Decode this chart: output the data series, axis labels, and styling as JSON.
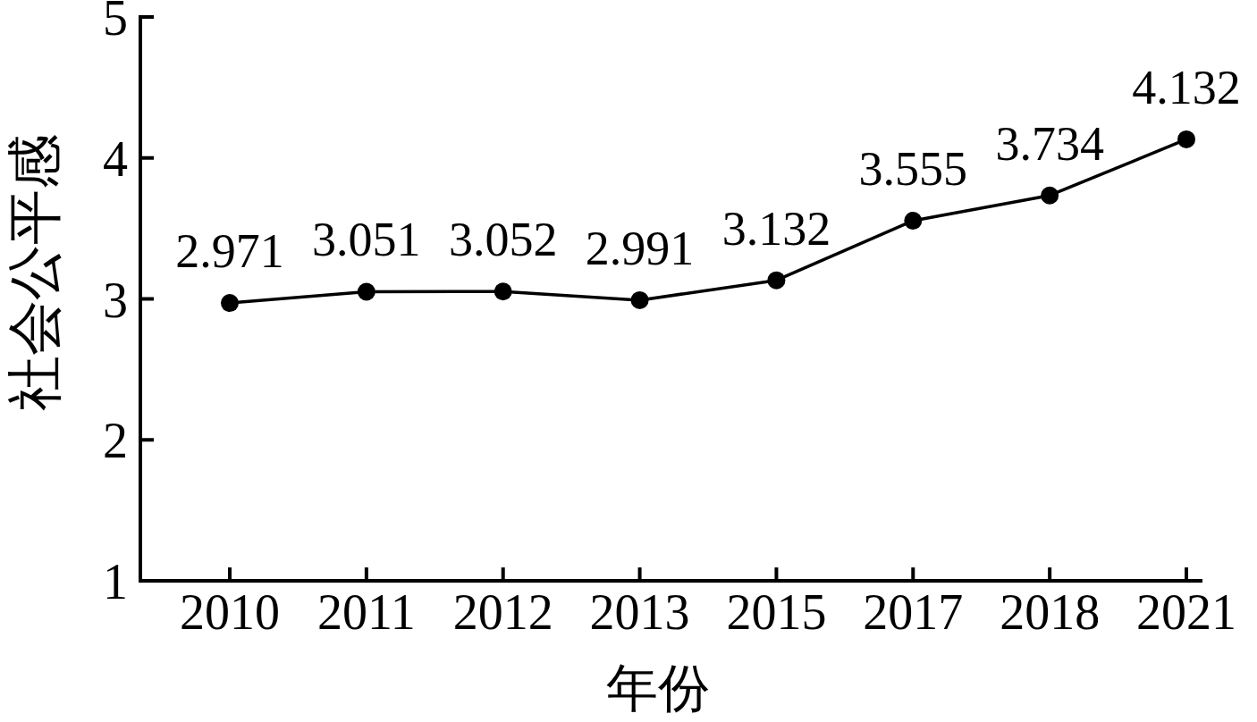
{
  "chart_data": {
    "type": "line",
    "xlabel": "年份",
    "ylabel": "社会公平感",
    "categories": [
      "2010",
      "2011",
      "2012",
      "2013",
      "2015",
      "2017",
      "2018",
      "2021"
    ],
    "series": [
      {
        "color": "#000000",
        "values": [
          2.971,
          3.051,
          3.052,
          2.991,
          3.132,
          3.555,
          3.734,
          4.132
        ]
      }
    ],
    "ylim": [
      1,
      5
    ],
    "yticks": [
      1,
      2,
      3,
      4,
      5
    ],
    "marker": "circle",
    "line_style": "solid",
    "data_labels": true
  }
}
